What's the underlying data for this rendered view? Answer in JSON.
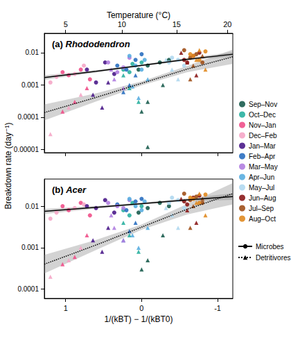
{
  "chart_data": [
    {
      "type": "scatter",
      "title": "(a) Rhododendron",
      "x2label": "Temperature (°C)",
      "x2ticks": [
        {
          "value": 1.0,
          "label": "5"
        },
        {
          "value": 0.26,
          "label": "10"
        },
        {
          "value": -0.46,
          "label": "15"
        },
        {
          "value": -1.13,
          "label": "20"
        }
      ],
      "ylabel": "Breakdown rate (day⁻¹)",
      "log": "y",
      "grid": false,
      "tick_labels": "y",
      "xlim": [
        1.28,
        -1.2
      ],
      "xticks": [
        1,
        0,
        -1
      ],
      "ylim": [
        8e-06,
        0.04
      ],
      "yticks": [
        1e-05,
        0.0001,
        0.001,
        0.01
      ],
      "series": [
        {
          "name": "Sep–Nov",
          "color": "#1a5c4e",
          "marker": "circle",
          "x": [
            -0.08,
            -0.24,
            -0.36,
            0.04
          ],
          "values": [
            0.004,
            0.005,
            0.006,
            0.003
          ]
        },
        {
          "name": "Oct–Dec",
          "color": "#2ab0a0",
          "marker": "circle",
          "x": [
            0.24,
            0.12,
            0,
            0.16
          ],
          "values": [
            0.003,
            0.0045,
            0.005,
            0.0025
          ]
        },
        {
          "name": "Nov–Jan",
          "color": "#f0508a",
          "marker": "circle",
          "x": [
            0.96,
            0.8,
            0.68,
            1.04
          ],
          "values": [
            0.002,
            0.003,
            0.0015,
            0.0025
          ]
        },
        {
          "name": "Dec–Feb",
          "color": "#f5a6c6",
          "marker": "circle",
          "x": [
            1.12,
            0.88,
            1.2,
            0.76
          ],
          "values": [
            0.0018,
            0.0022,
            0.0012,
            0.004
          ]
        },
        {
          "name": "Jan–Mar",
          "color": "#4a1a8a",
          "marker": "circle",
          "x": [
            0.72,
            0.48,
            0.36,
            0.6
          ],
          "values": [
            0.003,
            0.005,
            0.0022,
            0.0012
          ]
        },
        {
          "name": "Feb–Apr",
          "color": "#2a6fc0",
          "marker": "circle",
          "x": [
            0.32,
            0.08,
            0.2,
            0
          ],
          "values": [
            0.004,
            0.006,
            0.003,
            0.009
          ]
        },
        {
          "name": "Mar–May",
          "color": "#b07ee0",
          "marker": "circle",
          "x": [
            0.44,
            0.24,
            0.32,
            0.16
          ],
          "values": [
            0.005,
            0.0035,
            0.0025,
            0.007
          ]
        },
        {
          "name": "Apr–Jun",
          "color": "#5aaee0",
          "marker": "circle",
          "x": [
            0.08,
            -0.04,
            0.16,
            0
          ],
          "values": [
            0.004,
            0.006,
            0.008,
            0.003
          ]
        },
        {
          "name": "May–Jul",
          "color": "#b0d8f0",
          "marker": "circle",
          "x": [
            -0.36,
            -0.48,
            -0.56,
            -0.4
          ],
          "values": [
            0.005,
            0.006,
            0.004,
            0.007
          ]
        },
        {
          "name": "Jun–Aug",
          "color": "#8b1a1a",
          "marker": "circle",
          "x": [
            -0.56,
            -0.68,
            -0.76,
            -0.6
          ],
          "values": [
            0.006,
            0.008,
            0.01,
            0.005
          ]
        },
        {
          "name": "Jul–Sep",
          "color": "#a0501a",
          "marker": "circle",
          "x": [
            -0.64,
            -0.72,
            -0.8,
            -0.56
          ],
          "values": [
            0.007,
            0.009,
            0.005,
            0.012
          ]
        },
        {
          "name": "Aug–Oct",
          "color": "#e08a20",
          "marker": "circle",
          "x": [
            -0.68,
            -0.76,
            -0.84,
            -0.64
          ],
          "values": [
            0.008,
            0.006,
            0.011,
            0.009
          ]
        },
        {
          "name": "Sep–Nov",
          "color": "#1a5c4e",
          "marker": "triangle",
          "x": [
            -0.08,
            -0.28,
            0,
            -0.08
          ],
          "values": [
            0.0003,
            0.001,
            0.00015,
            1.2e-05
          ]
        },
        {
          "name": "Oct–Dec",
          "color": "#2ab0a0",
          "marker": "triangle",
          "x": [
            0.16,
            0.04,
            0.24
          ],
          "values": [
            0.0008,
            0.0003,
            0.002
          ]
        },
        {
          "name": "Nov–Jan",
          "color": "#f0508a",
          "marker": "triangle",
          "x": [
            0.88,
            0.72,
            1.04
          ],
          "values": [
            0.0003,
            0.0008,
            0.00015
          ]
        },
        {
          "name": "Dec–Feb",
          "color": "#f5a6c6",
          "marker": "triangle",
          "x": [
            1.2,
            0.96,
            0.8
          ],
          "values": [
            3e-05,
            0.0002,
            0.0005
          ]
        },
        {
          "name": "Jan–Mar",
          "color": "#4a1a8a",
          "marker": "triangle",
          "x": [
            0.64,
            0.44,
            0.52
          ],
          "values": [
            0.0005,
            0.0012,
            0.0002
          ]
        },
        {
          "name": "Feb–Apr",
          "color": "#2a6fc0",
          "marker": "triangle",
          "x": [
            0.24,
            0.08,
            0.16
          ],
          "values": [
            0.0006,
            0.002,
            0.001
          ]
        },
        {
          "name": "Mar–May",
          "color": "#b07ee0",
          "marker": "triangle",
          "x": [
            0.36,
            0.24,
            0.4
          ],
          "values": [
            0.0015,
            0.0008,
            0.003
          ]
        },
        {
          "name": "Apr–Jun",
          "color": "#5aaee0",
          "marker": "triangle",
          "x": [
            0.04,
            -0.08,
            0.12
          ],
          "values": [
            0.0004,
            0.0015,
            0.0009
          ]
        },
        {
          "name": "May–Jul",
          "color": "#b0d8f0",
          "marker": "triangle",
          "x": [
            -0.4,
            -0.48,
            -0.32
          ],
          "values": [
            0.003,
            0.0015,
            0.006
          ]
        },
        {
          "name": "Jun–Aug",
          "color": "#8b1a1a",
          "marker": "triangle",
          "x": [
            -0.6,
            -0.72,
            -0.52
          ],
          "values": [
            0.005,
            0.002,
            0.01
          ]
        },
        {
          "name": "Jul–Sep",
          "color": "#a0501a",
          "marker": "triangle",
          "x": [
            -0.68,
            -0.8,
            -0.64
          ],
          "values": [
            0.004,
            0.008,
            0.0015
          ]
        },
        {
          "name": "Aug–Oct",
          "color": "#e08a20",
          "marker": "triangle",
          "x": [
            -0.72,
            -0.84,
            -0.76
          ],
          "values": [
            0.006,
            0.003,
            0.012
          ]
        },
        {
          "name": "Microbes",
          "type": "line",
          "line_style": "solid",
          "marker": "circle",
          "x": [
            1.28,
            0.6,
            0,
            -0.6,
            -1.2
          ],
          "values": [
            0.0017,
            0.00267,
            0.00407,
            0.00622,
            0.009
          ],
          "lower": [
            0.00145,
            0.00245,
            0.0038,
            0.0057,
            0.0077
          ],
          "upper": [
            0.002,
            0.0029,
            0.00435,
            0.0068,
            0.0105
          ]
        },
        {
          "name": "Detritivores",
          "type": "line",
          "line_style": "dotted",
          "marker": "triangle",
          "x": [
            1.28,
            0.6,
            0,
            -0.6,
            -1.2
          ],
          "values": [
            0.00014,
            0.000412,
            0.00113,
            0.00312,
            0.0075
          ],
          "lower": [
            8e-05,
            0.00031,
            0.00098,
            0.0025,
            0.0045
          ],
          "upper": [
            0.00025,
            0.00055,
            0.0013,
            0.0039,
            0.0125
          ]
        }
      ]
    },
    {
      "type": "scatter",
      "title": "(b) Acer",
      "xlabel": "1/(kBT) − 1/(kBT0)",
      "log": "y",
      "grid": false,
      "xlim": [
        1.28,
        -1.2
      ],
      "xticks": [
        1,
        0,
        -1
      ],
      "ylim": [
        6e-05,
        0.045
      ],
      "yticks": [
        0.0001,
        0.001,
        0.01
      ],
      "series": [
        {
          "name": "Sep–Nov",
          "color": "#1a5c4e",
          "marker": "circle",
          "x": [
            -0.08,
            -0.24,
            -0.36,
            0.04
          ],
          "values": [
            0.009,
            0.012,
            0.01,
            0.007
          ]
        },
        {
          "name": "Oct–Dec",
          "color": "#2ab0a0",
          "marker": "circle",
          "x": [
            0.24,
            0.12,
            0,
            0.16
          ],
          "values": [
            0.008,
            0.012,
            0.01,
            0.006
          ]
        },
        {
          "name": "Nov–Jan",
          "color": "#f0508a",
          "marker": "circle",
          "x": [
            0.96,
            0.8,
            0.68,
            1.04
          ],
          "values": [
            0.008,
            0.012,
            0.006,
            0.01
          ]
        },
        {
          "name": "Dec–Feb",
          "color": "#f5a6c6",
          "marker": "circle",
          "x": [
            1.12,
            0.88,
            1.2,
            0.76
          ],
          "values": [
            0.007,
            0.009,
            0.005,
            0.011
          ]
        },
        {
          "name": "Jan–Mar",
          "color": "#4a1a8a",
          "marker": "circle",
          "x": [
            0.72,
            0.48,
            0.36,
            0.6
          ],
          "values": [
            0.01,
            0.014,
            0.007,
            0.009
          ]
        },
        {
          "name": "Feb–Apr",
          "color": "#2a6fc0",
          "marker": "circle",
          "x": [
            0.32,
            0.08,
            0.2,
            0
          ],
          "values": [
            0.011,
            0.013,
            0.008,
            0.015
          ]
        },
        {
          "name": "Mar–May",
          "color": "#b07ee0",
          "marker": "circle",
          "x": [
            0.44,
            0.24,
            0.32,
            0.16
          ],
          "values": [
            0.012,
            0.009,
            0.01,
            0.014
          ]
        },
        {
          "name": "Apr–Jun",
          "color": "#5aaee0",
          "marker": "circle",
          "x": [
            0.08,
            -0.04,
            0.16,
            0
          ],
          "values": [
            0.01,
            0.013,
            0.015,
            0.008
          ]
        },
        {
          "name": "May–Jul",
          "color": "#b0d8f0",
          "marker": "circle",
          "x": [
            -0.36,
            -0.48,
            -0.56,
            -0.4
          ],
          "values": [
            0.012,
            0.014,
            0.009,
            0.016
          ]
        },
        {
          "name": "Jun–Aug",
          "color": "#8b1a1a",
          "marker": "circle",
          "x": [
            -0.56,
            -0.68,
            -0.76,
            -0.6
          ],
          "values": [
            0.013,
            0.016,
            0.018,
            0.011
          ]
        },
        {
          "name": "Jul–Sep",
          "color": "#a0501a",
          "marker": "circle",
          "x": [
            -0.64,
            -0.72,
            -0.8,
            -0.56
          ],
          "values": [
            0.014,
            0.017,
            0.012,
            0.02
          ]
        },
        {
          "name": "Aug–Oct",
          "color": "#e08a20",
          "marker": "circle",
          "x": [
            -0.68,
            -0.76,
            -0.84,
            -0.64
          ],
          "values": [
            0.015,
            0.012,
            0.019,
            0.016
          ]
        },
        {
          "name": "Sep–Nov",
          "color": "#1a5c4e",
          "marker": "triangle",
          "x": [
            -0.08,
            -0.28,
            0
          ],
          "values": [
            0.0005,
            0.002,
            0.0003
          ]
        },
        {
          "name": "Oct–Dec",
          "color": "#2ab0a0",
          "marker": "triangle",
          "x": [
            0.16,
            0.04,
            0.24
          ],
          "values": [
            0.002,
            0.0008,
            0.004
          ]
        },
        {
          "name": "Nov–Jan",
          "color": "#f0508a",
          "marker": "triangle",
          "x": [
            0.88,
            0.72,
            1.04
          ],
          "values": [
            0.0006,
            0.002,
            0.0004
          ]
        },
        {
          "name": "Dec–Feb",
          "color": "#f5a6c6",
          "marker": "triangle",
          "x": [
            1.2,
            0.96,
            0.8
          ],
          "values": [
            0.0002,
            0.0005,
            0.001
          ]
        },
        {
          "name": "Jan–Mar",
          "color": "#4a1a8a",
          "marker": "triangle",
          "x": [
            0.64,
            0.44,
            0.52
          ],
          "values": [
            0.0015,
            0.003,
            0.0008
          ]
        },
        {
          "name": "Feb–Apr",
          "color": "#2a6fc0",
          "marker": "triangle",
          "x": [
            0.24,
            0.08,
            0.16
          ],
          "values": [
            0.0015,
            0.004,
            0.0025
          ]
        },
        {
          "name": "Mar–May",
          "color": "#b07ee0",
          "marker": "triangle",
          "x": [
            0.36,
            0.24,
            0.4
          ],
          "values": [
            0.003,
            0.0015,
            0.006
          ]
        },
        {
          "name": "Apr–Jun",
          "color": "#5aaee0",
          "marker": "triangle",
          "x": [
            0.04,
            -0.08,
            0.12
          ],
          "values": [
            0.001,
            0.003,
            0.002
          ]
        },
        {
          "name": "May–Jul",
          "color": "#b0d8f0",
          "marker": "triangle",
          "x": [
            -0.4,
            -0.48,
            -0.32
          ],
          "values": [
            0.006,
            0.003,
            0.009
          ]
        },
        {
          "name": "Jun–Aug",
          "color": "#8b1a1a",
          "marker": "triangle",
          "x": [
            -0.6,
            -0.72,
            -0.52
          ],
          "values": [
            0.008,
            0.004,
            0.015
          ]
        },
        {
          "name": "Jul–Sep",
          "color": "#a0501a",
          "marker": "triangle",
          "x": [
            -0.68,
            -0.8,
            -0.64
          ],
          "values": [
            0.01,
            0.015,
            0.003
          ]
        },
        {
          "name": "Aug–Oct",
          "color": "#e08a20",
          "marker": "triangle",
          "x": [
            -0.72,
            -0.84,
            -0.76
          ],
          "values": [
            0.012,
            0.006,
            0.02
          ]
        },
        {
          "name": "Microbes",
          "type": "line",
          "line_style": "solid",
          "marker": "circle",
          "x": [
            1.28,
            0.6,
            0,
            -0.6,
            -1.2
          ],
          "values": [
            0.0075,
            0.00935,
            0.01152,
            0.0142,
            0.017
          ],
          "lower": [
            0.0065,
            0.0087,
            0.0109,
            0.0131,
            0.0142
          ],
          "upper": [
            0.0086,
            0.0101,
            0.0122,
            0.0154,
            0.0204
          ]
        },
        {
          "name": "Detritivores",
          "type": "line",
          "line_style": "dotted",
          "marker": "triangle",
          "x": [
            1.28,
            0.6,
            0,
            -0.6,
            -1.2
          ],
          "values": [
            0.0004,
            0.00116,
            0.00313,
            0.00845,
            0.02
          ],
          "lower": [
            0.00024,
            0.00088,
            0.0027,
            0.0063,
            0.011
          ],
          "upper": [
            0.00067,
            0.00153,
            0.0036,
            0.0113,
            0.036
          ]
        }
      ]
    }
  ]
}
